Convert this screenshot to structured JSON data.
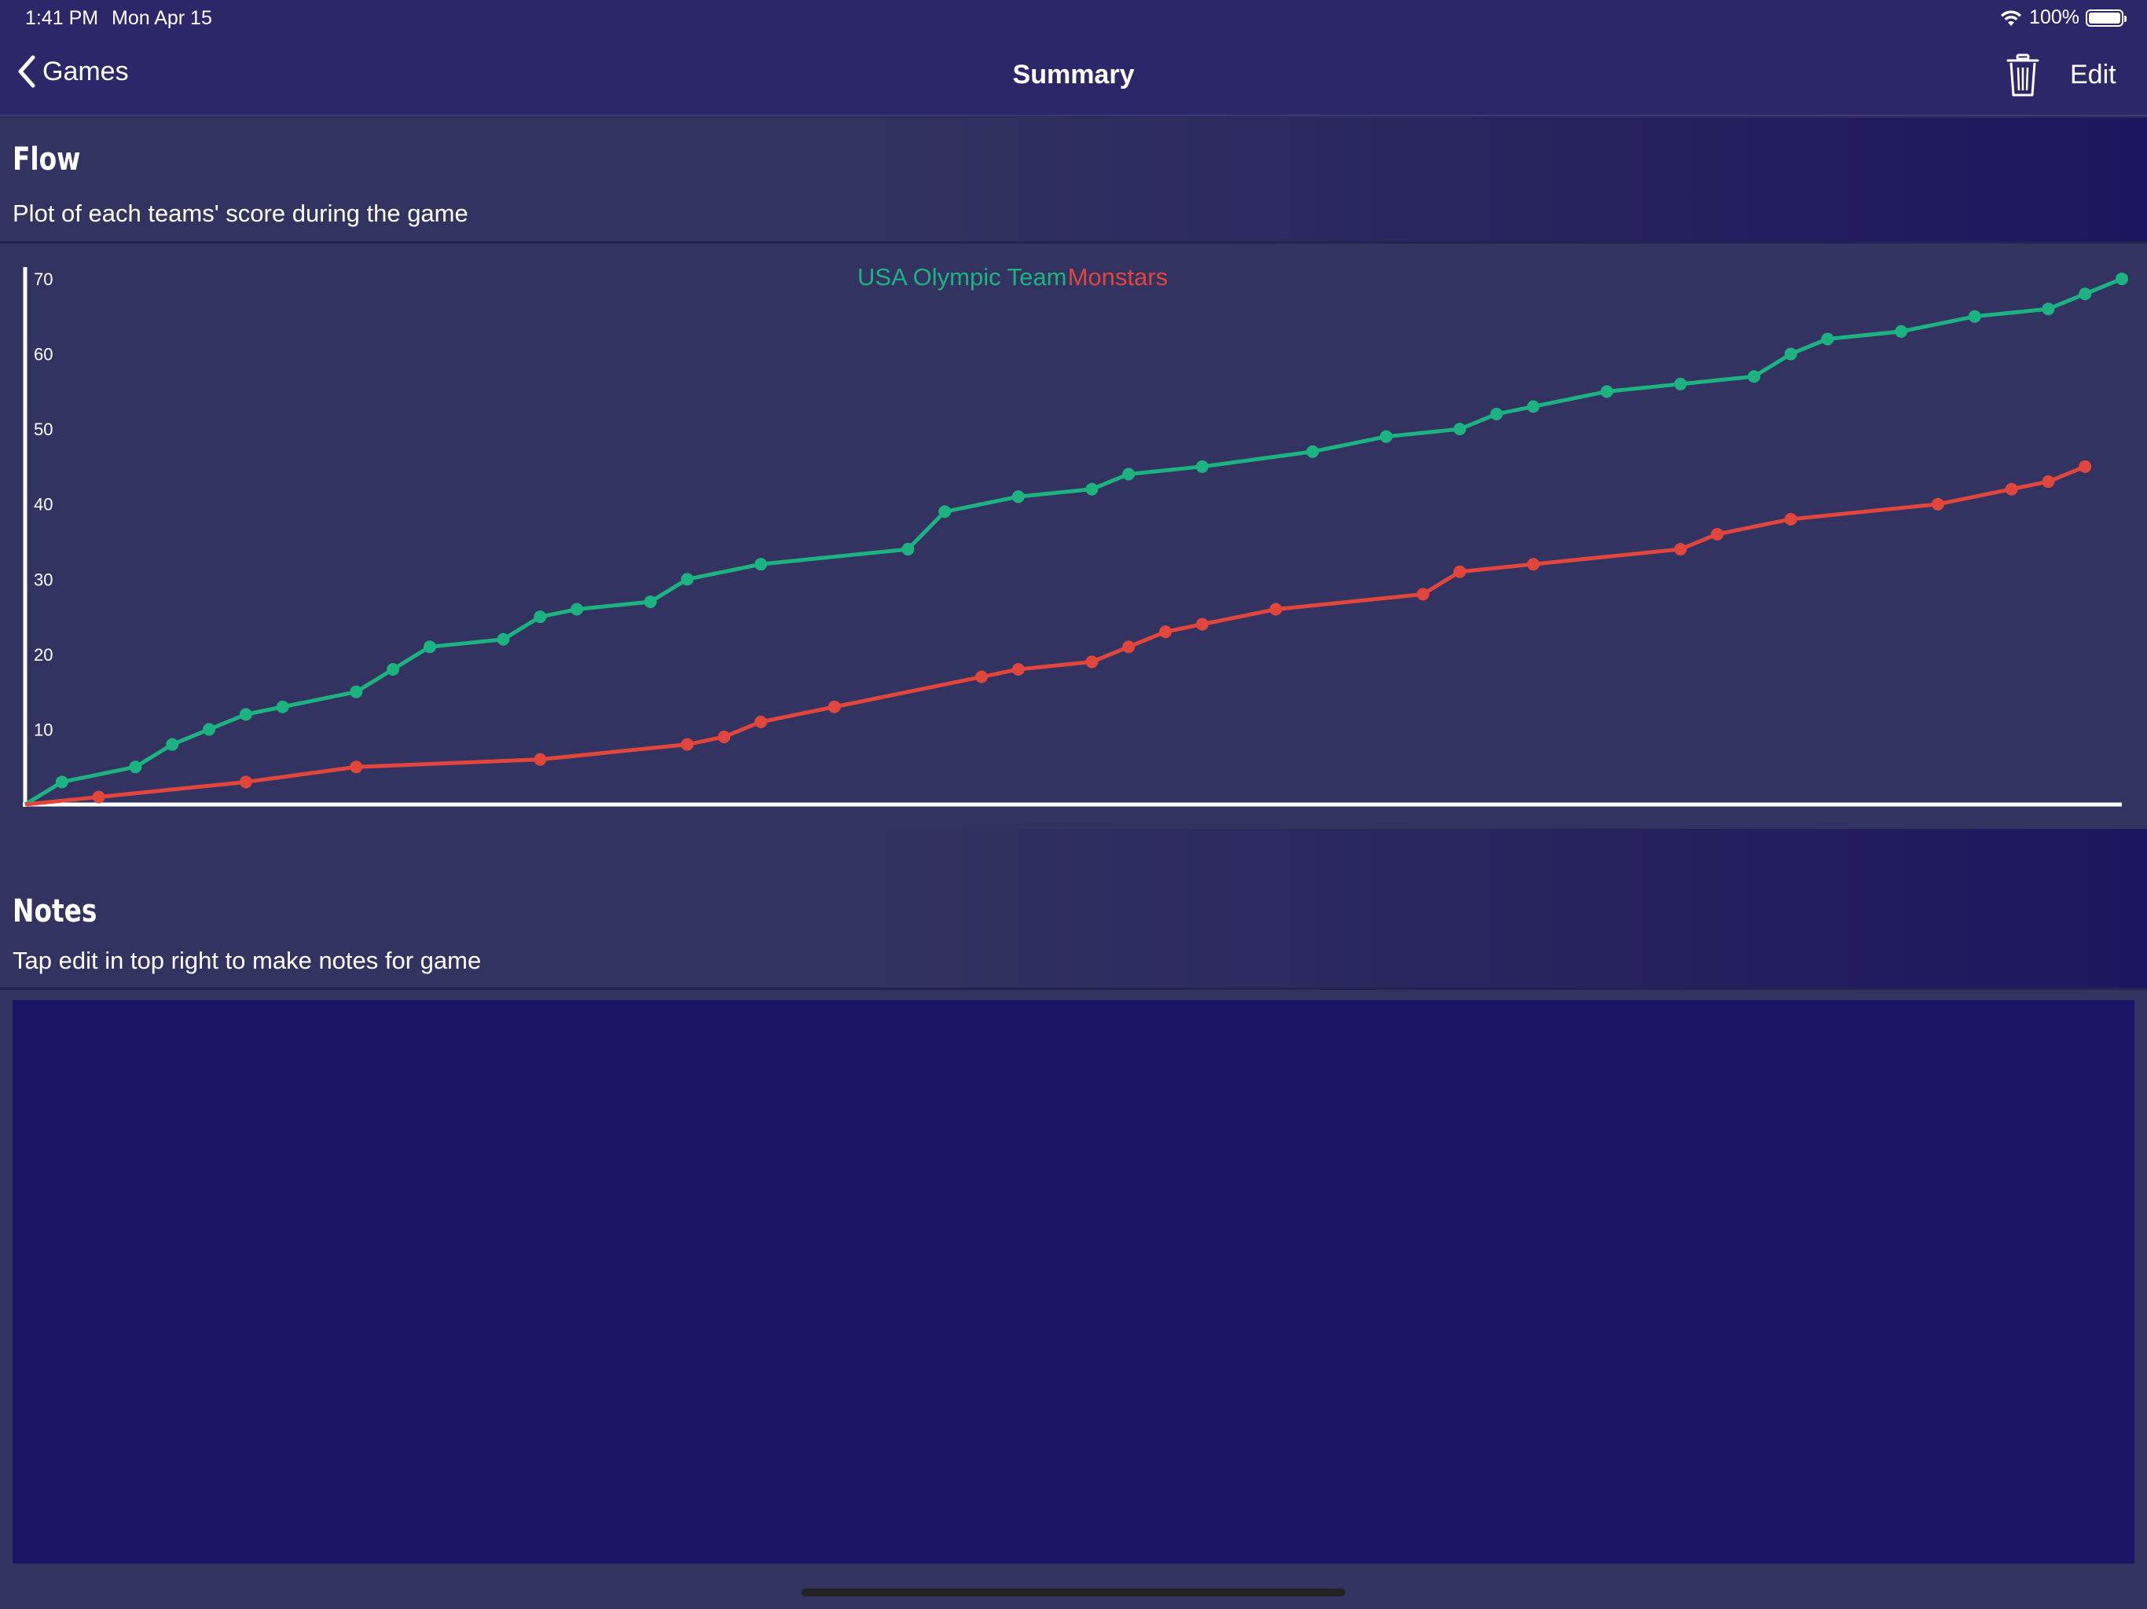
{
  "status_bar": {
    "time": "1:41 PM",
    "date": "Mon Apr 15",
    "battery": "100%",
    "battery_level": 1.0,
    "icons": [
      "wifi-icon",
      "battery-icon"
    ]
  },
  "navbar": {
    "back_label": "Games",
    "title": "Summary",
    "edit_label": "Edit",
    "icons": [
      "chevron-left-icon",
      "trash-icon"
    ]
  },
  "flow_section": {
    "title": "Flow",
    "subtitle": "Plot of each teams' score during the game"
  },
  "notes_section": {
    "title": "Notes",
    "subtitle": "Tap edit in top right to make notes for game",
    "notes_text": ""
  },
  "colors": {
    "team_a": "#1db381",
    "team_b": "#e0463c",
    "axis": "#ffffff"
  },
  "chart_data": {
    "type": "line",
    "title": "",
    "xlabel": "",
    "ylabel": "",
    "ylim": [
      0,
      70
    ],
    "yticks": [
      10,
      20,
      30,
      40,
      50,
      60,
      70
    ],
    "grid": false,
    "legend": "top-center",
    "series": [
      {
        "name": "USA Olympic Team",
        "color": "#1db381",
        "values": [
          [
            0,
            0
          ],
          [
            1,
            3
          ],
          [
            3,
            5
          ],
          [
            4,
            8
          ],
          [
            5,
            10
          ],
          [
            6,
            12
          ],
          [
            7,
            13
          ],
          [
            9,
            15
          ],
          [
            10,
            18
          ],
          [
            11,
            21
          ],
          [
            13,
            22
          ],
          [
            14,
            25
          ],
          [
            15,
            26
          ],
          [
            17,
            27
          ],
          [
            18,
            30
          ],
          [
            20,
            32
          ],
          [
            24,
            34
          ],
          [
            25,
            39
          ],
          [
            27,
            41
          ],
          [
            29,
            42
          ],
          [
            30,
            44
          ],
          [
            32,
            45
          ],
          [
            35,
            47
          ],
          [
            37,
            49
          ],
          [
            39,
            50
          ],
          [
            40,
            52
          ],
          [
            41,
            53
          ],
          [
            43,
            55
          ],
          [
            45,
            56
          ],
          [
            47,
            57
          ],
          [
            48,
            60
          ],
          [
            49,
            62
          ],
          [
            51,
            63
          ],
          [
            53,
            65
          ],
          [
            55,
            66
          ],
          [
            56,
            68
          ],
          [
            57,
            70
          ]
        ]
      },
      {
        "name": "Monstars",
        "color": "#e0463c",
        "values": [
          [
            0,
            0
          ],
          [
            2,
            1
          ],
          [
            6,
            3
          ],
          [
            9,
            5
          ],
          [
            14,
            6
          ],
          [
            18,
            8
          ],
          [
            19,
            9
          ],
          [
            20,
            11
          ],
          [
            22,
            13
          ],
          [
            26,
            17
          ],
          [
            27,
            18
          ],
          [
            29,
            19
          ],
          [
            30,
            21
          ],
          [
            31,
            23
          ],
          [
            32,
            24
          ],
          [
            34,
            26
          ],
          [
            38,
            28
          ],
          [
            39,
            31
          ],
          [
            41,
            32
          ],
          [
            45,
            34
          ],
          [
            46,
            36
          ],
          [
            48,
            38
          ],
          [
            52,
            40
          ],
          [
            54,
            42
          ],
          [
            55,
            43
          ],
          [
            56,
            45
          ]
        ]
      }
    ]
  }
}
